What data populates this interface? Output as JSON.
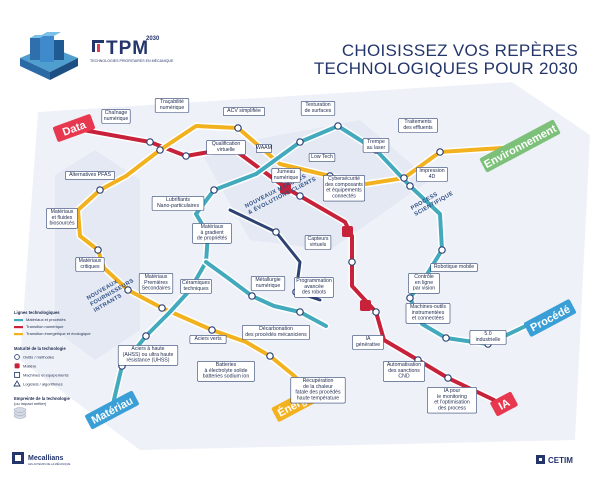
{
  "header": {
    "year": "2030",
    "logo_text": "TPM",
    "logo_tagline": "TECHNOLOGIES PRIORITAIRES EN MÉCANIQUE",
    "title_line1": "CHOISISSEZ VOS REPÈRES",
    "title_line2": "TECHNOLOGIQUES POUR 2030"
  },
  "colors": {
    "red": "#c8223a",
    "yellow": "#f2b11f",
    "teal": "#43aabe",
    "navy": "#2e4372",
    "board": "#eef1f8"
  },
  "terminals": [
    {
      "label": "Data",
      "color": "#e8384f"
    },
    {
      "label": "Environnement",
      "color": "#7cc07a"
    },
    {
      "label": "Procédé",
      "color": "#3a9fd6"
    },
    {
      "label": "Matériau",
      "color": "#3a9fd6"
    },
    {
      "label": "Énergie",
      "color": "#f2b11f"
    },
    {
      "label": "IA",
      "color": "#e8384f"
    }
  ],
  "zones": {
    "marches": [
      "NOUVEAUX MARCHÉS",
      "& ÉVOLUTIONS CLIENTS"
    ],
    "process": [
      "PROCESS",
      "SCIENTIFIQUE"
    ],
    "fournisseurs": [
      "NOUVEAUX",
      "FOURNISSEURS",
      "INTRANTS"
    ]
  },
  "stations": [
    {
      "label": [
        "Traçabilité",
        "numérique"
      ]
    },
    {
      "label": [
        "ACV simplifiée"
      ]
    },
    {
      "label": [
        "Texturation",
        "de surfaces"
      ]
    },
    {
      "label": [
        "Traitements",
        "des effluents"
      ]
    },
    {
      "label": [
        "Chaînage",
        "numérique"
      ]
    },
    {
      "label": [
        "Qualification",
        "virtuelle"
      ]
    },
    {
      "label": [
        "WAAM"
      ]
    },
    {
      "label": [
        "Trempe",
        "au laser"
      ]
    },
    {
      "label": [
        "Low Tech"
      ]
    },
    {
      "label": [
        "Jumeau",
        "numérique"
      ]
    },
    {
      "label": [
        "Cybersécurité",
        "des composants",
        "et équipements",
        "connectés"
      ]
    },
    {
      "label": [
        "Impression",
        "4D"
      ]
    },
    {
      "label": [
        "Alternatives PFAS"
      ]
    },
    {
      "label": [
        "Lubrifiants",
        "Nano-particulaires"
      ]
    },
    {
      "label": [
        "Matériaux",
        "et fluides",
        "biosourcés"
      ]
    },
    {
      "label": [
        "Matériaux",
        "à gradient",
        "de propriétés"
      ]
    },
    {
      "label": [
        "Capteurs",
        "virtuels"
      ]
    },
    {
      "label": [
        "Robotique mobile"
      ]
    },
    {
      "label": [
        "Matériaux",
        "critiques"
      ]
    },
    {
      "label": [
        "Contrôle",
        "en ligne",
        "par vision"
      ]
    },
    {
      "label": [
        "Matériaux",
        "Premières",
        "Secondaires"
      ]
    },
    {
      "label": [
        "Céramiques",
        "techniques"
      ]
    },
    {
      "label": [
        "Métallurgie",
        "numérique"
      ]
    },
    {
      "label": [
        "Programmation",
        "avancée",
        "des robots"
      ]
    },
    {
      "label": [
        "Machines-outils",
        "instrumentées",
        "et connectées"
      ]
    },
    {
      "label": [
        "5.0",
        "industrielle"
      ]
    },
    {
      "label": [
        "Décarbonation",
        "des procédés mécaniciens"
      ]
    },
    {
      "label": [
        "IA",
        "générative"
      ]
    },
    {
      "label": [
        "Aciers à haute",
        "(AHSS) ou ultra haute",
        "résistance (UHSS)"
      ]
    },
    {
      "label": [
        "Aciers verts"
      ]
    },
    {
      "label": [
        "Batteries",
        "à électrolyte solide",
        "batteries sodium ion"
      ]
    },
    {
      "label": [
        "Automatisation",
        "des sanctions",
        "CND"
      ]
    },
    {
      "label": [
        "Récupération",
        "de la chaleur",
        "fatale des procédés",
        "haute température"
      ]
    },
    {
      "label": [
        "IA pour",
        "le monitoring",
        "et l'optimisation",
        "des process"
      ]
    }
  ],
  "legend": {
    "title": "Lignes technologiques",
    "lines": [
      "Matériaux et procédés",
      "Transition numérique",
      "Transition énergétique et écologique"
    ],
    "maturity_title": "Maturité de la technologie",
    "maturity": [
      "Outils / méthodes",
      "Matière",
      "Machines et équipements",
      "Logiciels / algorithmes"
    ],
    "certif_title": "Empreinte de la technologie",
    "certif_sub": "(ou impact métier)"
  },
  "footer": {
    "left_brand": "Mecallians",
    "left_sub": "LES ACTEURS DE LA MÉCANIQUE",
    "right_brand": "CETIM"
  }
}
